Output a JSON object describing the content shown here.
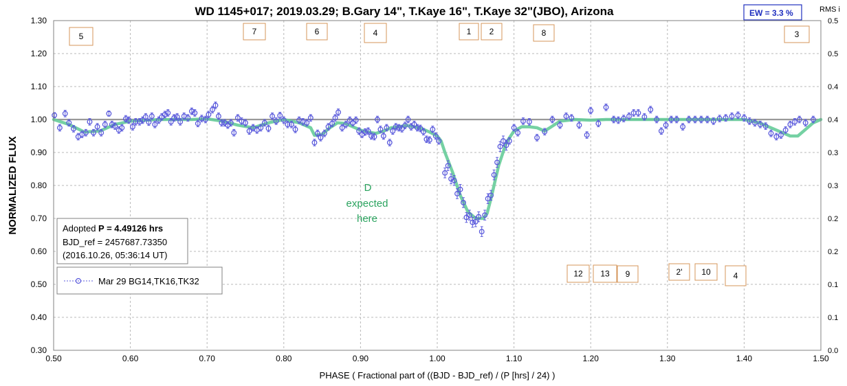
{
  "chart_data": {
    "type": "scatter",
    "title": "WD 1145+017; 2019.03.29; B.Gary 14\", T.Kaye 16\", T.Kaye 32\"(JBO),  Arizona",
    "xlabel": "PHASE ( Fractional part of ((BJD - BJD_ref) / (P [hrs] / 24) )",
    "ylabel": "NORMALIZED FLUX",
    "right_axis_label": "RMS i",
    "xlim": [
      0.5,
      1.5
    ],
    "ylim": [
      0.3,
      1.3
    ],
    "right_ylim": [
      0.0,
      0.5
    ],
    "x_ticks": [
      "0.50",
      "0.60",
      "0.70",
      "0.80",
      "0.90",
      "1.00",
      "1.10",
      "1.20",
      "1.30",
      "1.40",
      "1.50"
    ],
    "y_ticks": [
      "0.30",
      "0.40",
      "0.50",
      "0.60",
      "0.70",
      "0.80",
      "0.90",
      "1.00",
      "1.10",
      "1.20",
      "1.30"
    ],
    "right_ticks": [
      "0.0",
      "0.1",
      "0.2",
      "0.2",
      "0.3",
      "0.3",
      "0.4",
      "0.4",
      "0.5",
      "0.5"
    ],
    "grid": true,
    "reference_line": 1.0,
    "colors": {
      "points": "#5a5adc",
      "model": "#66cc99",
      "box_border": "#d4955a",
      "note": "#2aa35e",
      "ew": "#1f2fbf"
    },
    "series": [
      {
        "name": "Mar 29 BG14,TK16,TK32",
        "points": [
          [
            0.501,
            1.013,
            0.008
          ],
          [
            0.508,
            0.975,
            0.01
          ],
          [
            0.515,
            1.018,
            0.01
          ],
          [
            0.52,
            0.99,
            0.01
          ],
          [
            0.526,
            0.972,
            0.01
          ],
          [
            0.532,
            0.948,
            0.01
          ],
          [
            0.537,
            0.955,
            0.01
          ],
          [
            0.542,
            0.96,
            0.01
          ],
          [
            0.547,
            0.993,
            0.01
          ],
          [
            0.552,
            0.96,
            0.01
          ],
          [
            0.557,
            0.978,
            0.01
          ],
          [
            0.562,
            0.96,
            0.01
          ],
          [
            0.567,
            0.985,
            0.01
          ],
          [
            0.572,
            1.018,
            0.008
          ],
          [
            0.576,
            0.985,
            0.01
          ],
          [
            0.58,
            0.98,
            0.01
          ],
          [
            0.585,
            0.968,
            0.01
          ],
          [
            0.589,
            0.975,
            0.01
          ],
          [
            0.594,
            1.002,
            0.01
          ],
          [
            0.598,
            0.998,
            0.01
          ],
          [
            0.603,
            0.978,
            0.01
          ],
          [
            0.607,
            0.993,
            0.01
          ],
          [
            0.612,
            0.993,
            0.01
          ],
          [
            0.616,
            0.998,
            0.01
          ],
          [
            0.62,
            1.008,
            0.01
          ],
          [
            0.624,
            0.992,
            0.01
          ],
          [
            0.628,
            1.01,
            0.01
          ],
          [
            0.632,
            0.985,
            0.01
          ],
          [
            0.637,
            0.998,
            0.01
          ],
          [
            0.641,
            1.008,
            0.01
          ],
          [
            0.645,
            1.015,
            0.01
          ],
          [
            0.649,
            1.02,
            0.01
          ],
          [
            0.653,
            0.993,
            0.01
          ],
          [
            0.657,
            1.005,
            0.01
          ],
          [
            0.661,
            1.008,
            0.01
          ],
          [
            0.665,
            0.993,
            0.01
          ],
          [
            0.67,
            1.01,
            0.01
          ],
          [
            0.675,
            1.005,
            0.01
          ],
          [
            0.68,
            1.025,
            0.01
          ],
          [
            0.684,
            1.02,
            0.01
          ],
          [
            0.688,
            0.988,
            0.01
          ],
          [
            0.693,
            1.003,
            0.01
          ],
          [
            0.698,
            1.0,
            0.01
          ],
          [
            0.702,
            1.015,
            0.01
          ],
          [
            0.707,
            1.03,
            0.01
          ],
          [
            0.711,
            1.043,
            0.01
          ],
          [
            0.715,
            1.01,
            0.01
          ],
          [
            0.719,
            0.99,
            0.01
          ],
          [
            0.723,
            0.99,
            0.01
          ],
          [
            0.727,
            0.983,
            0.01
          ],
          [
            0.731,
            0.99,
            0.01
          ],
          [
            0.735,
            0.96,
            0.01
          ],
          [
            0.74,
            1.005,
            0.01
          ],
          [
            0.745,
            0.995,
            0.01
          ],
          [
            0.75,
            0.99,
            0.01
          ],
          [
            0.755,
            0.965,
            0.01
          ],
          [
            0.76,
            0.975,
            0.01
          ],
          [
            0.765,
            0.968,
            0.01
          ],
          [
            0.77,
            0.975,
            0.01
          ],
          [
            0.775,
            0.99,
            0.01
          ],
          [
            0.78,
            0.973,
            0.01
          ],
          [
            0.785,
            1.01,
            0.01
          ],
          [
            0.79,
            0.995,
            0.01
          ],
          [
            0.795,
            1.012,
            0.01
          ],
          [
            0.8,
            0.998,
            0.01
          ],
          [
            0.805,
            0.985,
            0.01
          ],
          [
            0.81,
            0.985,
            0.01
          ],
          [
            0.815,
            0.97,
            0.01
          ],
          [
            0.82,
            0.998,
            0.01
          ],
          [
            0.825,
            0.993,
            0.01
          ],
          [
            0.83,
            0.99,
            0.01
          ],
          [
            0.835,
            1.005,
            0.01
          ],
          [
            0.84,
            0.93,
            0.01
          ],
          [
            0.844,
            0.958,
            0.01
          ],
          [
            0.848,
            0.945,
            0.01
          ],
          [
            0.853,
            0.958,
            0.01
          ],
          [
            0.858,
            0.978,
            0.01
          ],
          [
            0.863,
            0.988,
            0.01
          ],
          [
            0.867,
            1.005,
            0.01
          ],
          [
            0.871,
            1.022,
            0.01
          ],
          [
            0.876,
            0.975,
            0.01
          ],
          [
            0.881,
            0.985,
            0.01
          ],
          [
            0.886,
            0.998,
            0.01
          ],
          [
            0.89,
            0.99,
            0.01
          ],
          [
            0.894,
            0.998,
            0.01
          ],
          [
            0.898,
            0.965,
            0.01
          ],
          [
            0.902,
            0.955,
            0.01
          ],
          [
            0.906,
            0.962,
            0.01
          ],
          [
            0.91,
            0.965,
            0.01
          ],
          [
            0.914,
            0.95,
            0.01
          ],
          [
            0.918,
            0.948,
            0.01
          ],
          [
            0.922,
            1.0,
            0.01
          ],
          [
            0.926,
            0.97,
            0.01
          ],
          [
            0.93,
            0.95,
            0.01
          ],
          [
            0.934,
            0.975,
            0.01
          ],
          [
            0.938,
            0.93,
            0.01
          ],
          [
            0.942,
            0.965,
            0.01
          ],
          [
            0.946,
            0.978,
            0.01
          ],
          [
            0.95,
            0.975,
            0.01
          ],
          [
            0.954,
            0.972,
            0.01
          ],
          [
            0.958,
            0.982,
            0.01
          ],
          [
            0.962,
            1.0,
            0.01
          ],
          [
            0.966,
            0.978,
            0.01
          ],
          [
            0.97,
            0.985,
            0.01
          ],
          [
            0.974,
            0.975,
            0.01
          ],
          [
            0.978,
            0.973,
            0.01
          ],
          [
            0.982,
            0.963,
            0.01
          ],
          [
            0.986,
            0.94,
            0.01
          ],
          [
            0.99,
            0.938,
            0.01
          ],
          [
            0.994,
            0.97,
            0.01
          ],
          [
            0.998,
            0.95,
            0.01
          ],
          [
            1.002,
            0.935,
            0.01
          ],
          [
            1.01,
            0.838,
            0.015
          ],
          [
            1.014,
            0.86,
            0.015
          ],
          [
            1.018,
            0.82,
            0.015
          ],
          [
            1.022,
            0.815,
            0.015
          ],
          [
            1.026,
            0.775,
            0.015
          ],
          [
            1.03,
            0.788,
            0.015
          ],
          [
            1.034,
            0.748,
            0.015
          ],
          [
            1.038,
            0.703,
            0.015
          ],
          [
            1.042,
            0.71,
            0.015
          ],
          [
            1.046,
            0.688,
            0.015
          ],
          [
            1.05,
            0.69,
            0.015
          ],
          [
            1.054,
            0.705,
            0.015
          ],
          [
            1.058,
            0.66,
            0.015
          ],
          [
            1.062,
            0.71,
            0.015
          ],
          [
            1.066,
            0.76,
            0.015
          ],
          [
            1.07,
            0.77,
            0.015
          ],
          [
            1.074,
            0.832,
            0.015
          ],
          [
            1.078,
            0.87,
            0.015
          ],
          [
            1.082,
            0.918,
            0.015
          ],
          [
            1.086,
            0.935,
            0.015
          ],
          [
            1.09,
            0.922,
            0.015
          ],
          [
            1.094,
            0.935,
            0.01
          ],
          [
            1.1,
            0.975,
            0.01
          ],
          [
            1.105,
            0.96,
            0.01
          ],
          [
            1.112,
            0.995,
            0.01
          ],
          [
            1.12,
            0.993,
            0.01
          ],
          [
            1.13,
            0.945,
            0.01
          ],
          [
            1.14,
            0.963,
            0.01
          ],
          [
            1.15,
            1.0,
            0.01
          ],
          [
            1.16,
            0.983,
            0.01
          ],
          [
            1.168,
            1.01,
            0.01
          ],
          [
            1.175,
            1.005,
            0.01
          ],
          [
            1.185,
            0.983,
            0.01
          ],
          [
            1.195,
            0.953,
            0.01
          ],
          [
            1.2,
            1.027,
            0.01
          ],
          [
            1.21,
            0.988,
            0.01
          ],
          [
            1.22,
            1.037,
            0.01
          ],
          [
            1.23,
            1.0,
            0.01
          ],
          [
            1.236,
            0.998,
            0.01
          ],
          [
            1.243,
            1.003,
            0.01
          ],
          [
            1.25,
            1.01,
            0.01
          ],
          [
            1.256,
            1.02,
            0.01
          ],
          [
            1.262,
            1.02,
            0.01
          ],
          [
            1.27,
            1.008,
            0.01
          ],
          [
            1.278,
            1.03,
            0.01
          ],
          [
            1.286,
            1.0,
            0.01
          ],
          [
            1.292,
            0.965,
            0.01
          ],
          [
            1.298,
            0.983,
            0.01
          ],
          [
            1.305,
            1.0,
            0.01
          ],
          [
            1.312,
            1.0,
            0.01
          ],
          [
            1.32,
            0.978,
            0.01
          ],
          [
            1.328,
            1.0,
            0.01
          ],
          [
            1.336,
            1.0,
            0.01
          ],
          [
            1.344,
            1.0,
            0.01
          ],
          [
            1.352,
            1.0,
            0.01
          ],
          [
            1.36,
            0.995,
            0.01
          ],
          [
            1.368,
            1.003,
            0.01
          ],
          [
            1.376,
            1.005,
            0.01
          ],
          [
            1.384,
            1.01,
            0.01
          ],
          [
            1.392,
            1.013,
            0.01
          ],
          [
            1.4,
            1.005,
            0.01
          ],
          [
            1.407,
            0.995,
            0.01
          ],
          [
            1.414,
            0.99,
            0.01
          ],
          [
            1.421,
            0.985,
            0.01
          ],
          [
            1.428,
            0.98,
            0.01
          ],
          [
            1.435,
            0.958,
            0.01
          ],
          [
            1.442,
            0.948,
            0.01
          ],
          [
            1.448,
            0.953,
            0.01
          ],
          [
            1.454,
            0.968,
            0.01
          ],
          [
            1.46,
            0.985,
            0.01
          ],
          [
            1.466,
            0.993,
            0.01
          ],
          [
            1.472,
            1.0,
            0.01
          ],
          [
            1.48,
            0.99,
            0.01
          ],
          [
            1.49,
            1.0,
            0.01
          ]
        ]
      }
    ],
    "model_curve": [
      [
        0.5,
        1.0
      ],
      [
        0.52,
        0.985
      ],
      [
        0.54,
        0.962
      ],
      [
        0.56,
        0.965
      ],
      [
        0.58,
        0.985
      ],
      [
        0.6,
        0.995
      ],
      [
        0.62,
        0.998
      ],
      [
        0.64,
        1.0
      ],
      [
        0.66,
        1.0
      ],
      [
        0.68,
        1.0
      ],
      [
        0.7,
        1.002
      ],
      [
        0.72,
        0.995
      ],
      [
        0.74,
        0.983
      ],
      [
        0.76,
        0.975
      ],
      [
        0.78,
        0.99
      ],
      [
        0.8,
        1.0
      ],
      [
        0.82,
        0.99
      ],
      [
        0.835,
        0.975
      ],
      [
        0.84,
        0.952
      ],
      [
        0.85,
        0.955
      ],
      [
        0.86,
        0.975
      ],
      [
        0.87,
        0.99
      ],
      [
        0.88,
        0.988
      ],
      [
        0.89,
        0.978
      ],
      [
        0.9,
        0.968
      ],
      [
        0.91,
        0.962
      ],
      [
        0.92,
        0.958
      ],
      [
        0.93,
        0.965
      ],
      [
        0.94,
        0.975
      ],
      [
        0.95,
        0.978
      ],
      [
        0.96,
        0.982
      ],
      [
        0.97,
        0.978
      ],
      [
        0.98,
        0.972
      ],
      [
        0.99,
        0.962
      ],
      [
        1.0,
        0.95
      ],
      [
        1.005,
        0.935
      ],
      [
        1.01,
        0.9
      ],
      [
        1.02,
        0.84
      ],
      [
        1.03,
        0.77
      ],
      [
        1.04,
        0.72
      ],
      [
        1.05,
        0.7
      ],
      [
        1.06,
        0.7
      ],
      [
        1.065,
        0.715
      ],
      [
        1.07,
        0.76
      ],
      [
        1.08,
        0.86
      ],
      [
        1.09,
        0.93
      ],
      [
        1.1,
        0.965
      ],
      [
        1.11,
        0.978
      ],
      [
        1.12,
        0.978
      ],
      [
        1.13,
        0.975
      ],
      [
        1.14,
        0.965
      ],
      [
        1.15,
        0.98
      ],
      [
        1.16,
        0.995
      ],
      [
        1.18,
        1.0
      ],
      [
        1.2,
        0.998
      ],
      [
        1.22,
        1.0
      ],
      [
        1.24,
        1.0
      ],
      [
        1.26,
        1.0
      ],
      [
        1.28,
        1.0
      ],
      [
        1.3,
        1.0
      ],
      [
        1.32,
        1.0
      ],
      [
        1.34,
        1.0
      ],
      [
        1.36,
        1.0
      ],
      [
        1.38,
        1.0
      ],
      [
        1.4,
        1.0
      ],
      [
        1.42,
        0.99
      ],
      [
        1.44,
        0.97
      ],
      [
        1.46,
        0.95
      ],
      [
        1.47,
        0.95
      ],
      [
        1.48,
        0.97
      ],
      [
        1.49,
        0.99
      ],
      [
        1.5,
        1.0
      ]
    ],
    "markers_top": [
      "5",
      "7",
      "6",
      "4",
      "1",
      "2",
      "8",
      "3"
    ],
    "markers_bottom": [
      "12",
      "13",
      "9",
      "2'",
      "10",
      "4"
    ],
    "annotation": {
      "line1": "D",
      "line2": "expected",
      "line3": "here"
    },
    "info_box": {
      "line1_prefix": "Adopted ",
      "line1_value": "P = 4.49126 hrs",
      "line2": "BJD_ref = 2457687.73350",
      "line3": "(2016.10.26, 05:36:14 UT)"
    },
    "legend": {
      "label": "Mar 29 BG14,TK16,TK32",
      "placement": "left"
    },
    "ew_box": {
      "prefix": "EW = ",
      "value": "3.3 %"
    }
  }
}
